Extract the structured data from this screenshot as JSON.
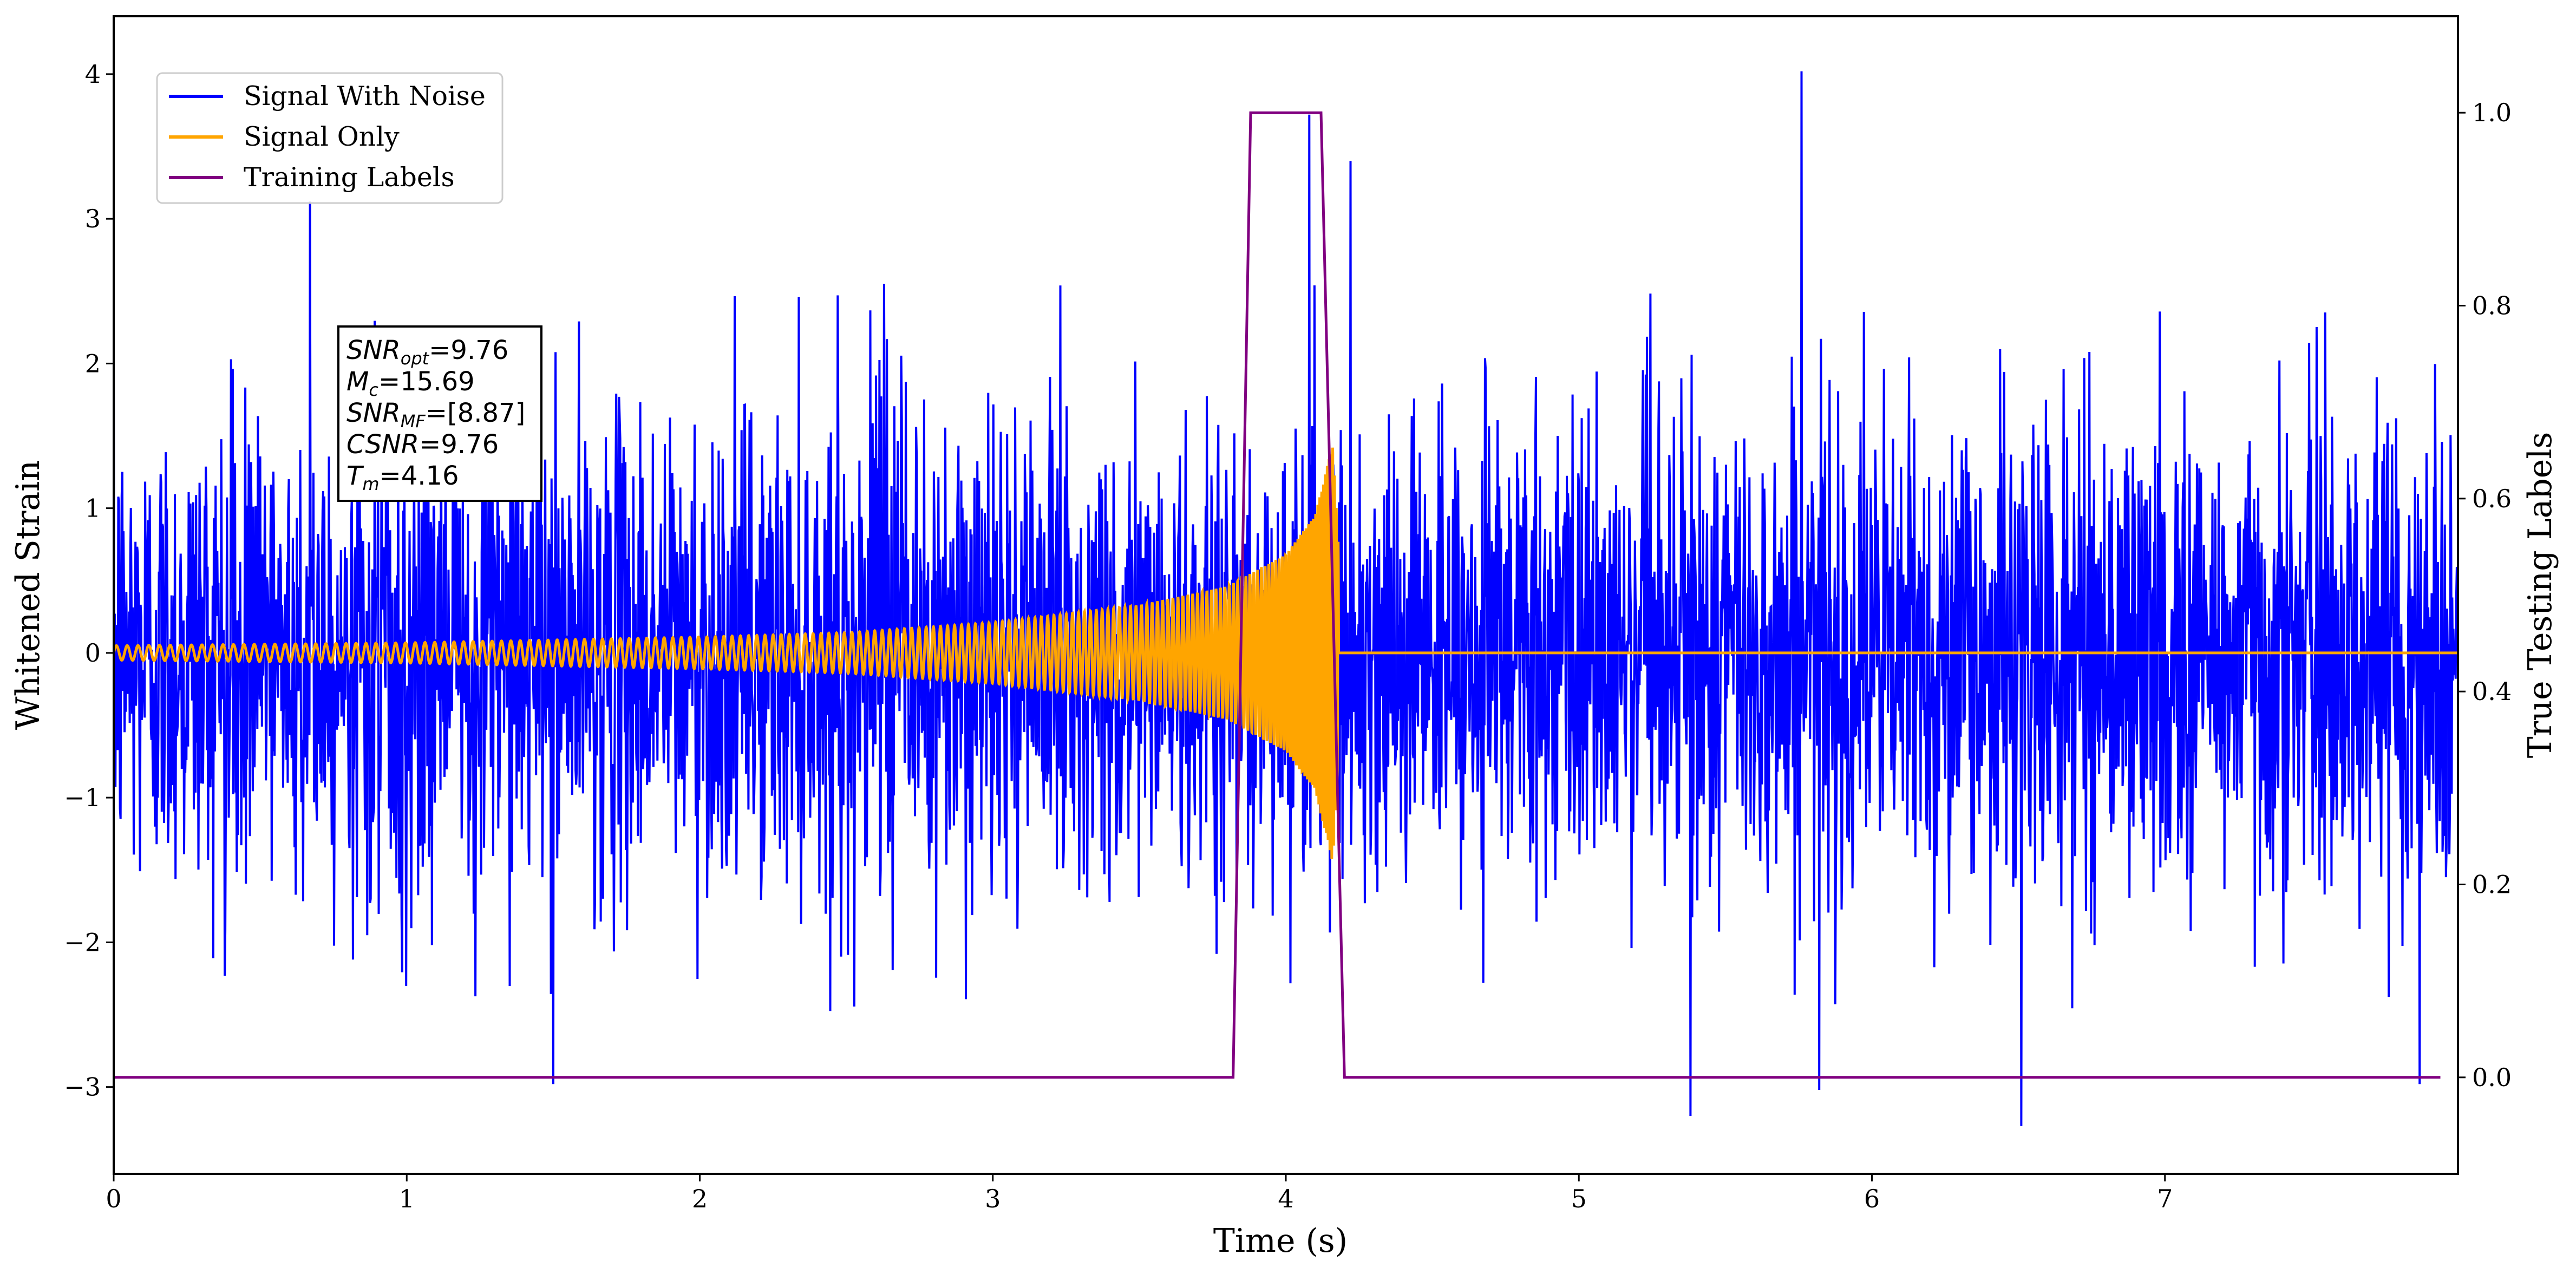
{
  "chart_data": {
    "type": "line",
    "xlabel": "Time (s)",
    "ylabel": "Whitened Strain",
    "y2label": "True Testing Labels",
    "xlim": [
      0,
      8
    ],
    "ylim": [
      -3.6,
      4.4
    ],
    "y2lim": [
      -0.1,
      1.1
    ],
    "grid": false,
    "legend_position": "top-left",
    "x_ticks": [
      {
        "value": 0,
        "label": "0"
      },
      {
        "value": 1,
        "label": "1"
      },
      {
        "value": 2,
        "label": "2"
      },
      {
        "value": 3,
        "label": "3"
      },
      {
        "value": 4,
        "label": "4"
      },
      {
        "value": 5,
        "label": "5"
      },
      {
        "value": 6,
        "label": "6"
      },
      {
        "value": 7,
        "label": "7"
      }
    ],
    "y_ticks": [
      {
        "value": 4,
        "label": "4"
      },
      {
        "value": 3,
        "label": "3"
      },
      {
        "value": 2,
        "label": "2"
      },
      {
        "value": 1,
        "label": "1"
      },
      {
        "value": 0,
        "label": "0"
      },
      {
        "value": -1,
        "label": "−1"
      },
      {
        "value": -2,
        "label": "−2"
      },
      {
        "value": -3,
        "label": "−3"
      }
    ],
    "y2_ticks": [
      {
        "value": 1.0,
        "label": "1.0"
      },
      {
        "value": 0.8,
        "label": "0.8"
      },
      {
        "value": 0.6,
        "label": "0.6"
      },
      {
        "value": 0.4,
        "label": "0.4"
      },
      {
        "value": 0.2,
        "label": "0.2"
      },
      {
        "value": 0.0,
        "label": "0.0"
      }
    ],
    "series": [
      {
        "name": "Signal With Noise",
        "axis": "left",
        "color": "#0000ff",
        "sample_rate_hz": 512,
        "duration_s": 8,
        "typical_range": [
          -2.5,
          2.7
        ],
        "spikes": [
          {
            "x": 5.76,
            "y": 4.02
          },
          {
            "x": 4.08,
            "y": 3.72
          },
          {
            "x": 0.67,
            "y": 3.12
          },
          {
            "x": 4.22,
            "y": 3.4
          },
          {
            "x": 1.5,
            "y": -2.98
          },
          {
            "x": 5.38,
            "y": -3.2
          },
          {
            "x": 5.82,
            "y": -3.02
          },
          {
            "x": 6.51,
            "y": -3.27
          },
          {
            "x": 7.87,
            "y": -2.98
          }
        ]
      },
      {
        "name": "Signal Only",
        "axis": "left",
        "color": "#ffa500",
        "waveform": "chirp",
        "start_amplitude": 0.05,
        "merger_time_s": 4.16,
        "peak_amplitude": 1.45,
        "start_frequency_hz": 27,
        "end_frequency_hz": 160,
        "x": [
          0,
          1,
          2,
          2.5,
          3,
          3.5,
          3.8,
          4.0,
          4.1,
          4.16,
          4.2,
          8
        ],
        "envelope": [
          0.05,
          0.07,
          0.11,
          0.14,
          0.21,
          0.33,
          0.46,
          0.68,
          0.95,
          1.45,
          0.0,
          0.0
        ]
      },
      {
        "name": "Training Labels",
        "axis": "right",
        "color": "#800080",
        "x": [
          0.0,
          3.82,
          3.88,
          4.12,
          4.2,
          7.94
        ],
        "values": [
          0.0,
          0.0,
          1.0,
          1.0,
          0.0,
          0.0
        ]
      }
    ],
    "annotation": {
      "lines": [
        {
          "name": "SNR",
          "sub": "opt",
          "value": "=9.76"
        },
        {
          "name": "M",
          "sub": "c",
          "value": "=15.69"
        },
        {
          "name": "SNR",
          "sub": "MF",
          "value": "=[8.87]"
        },
        {
          "name": "CSNR",
          "sub": "",
          "value": "=9.76"
        },
        {
          "name": "T",
          "sub": "m",
          "value": "=4.16"
        }
      ]
    }
  }
}
